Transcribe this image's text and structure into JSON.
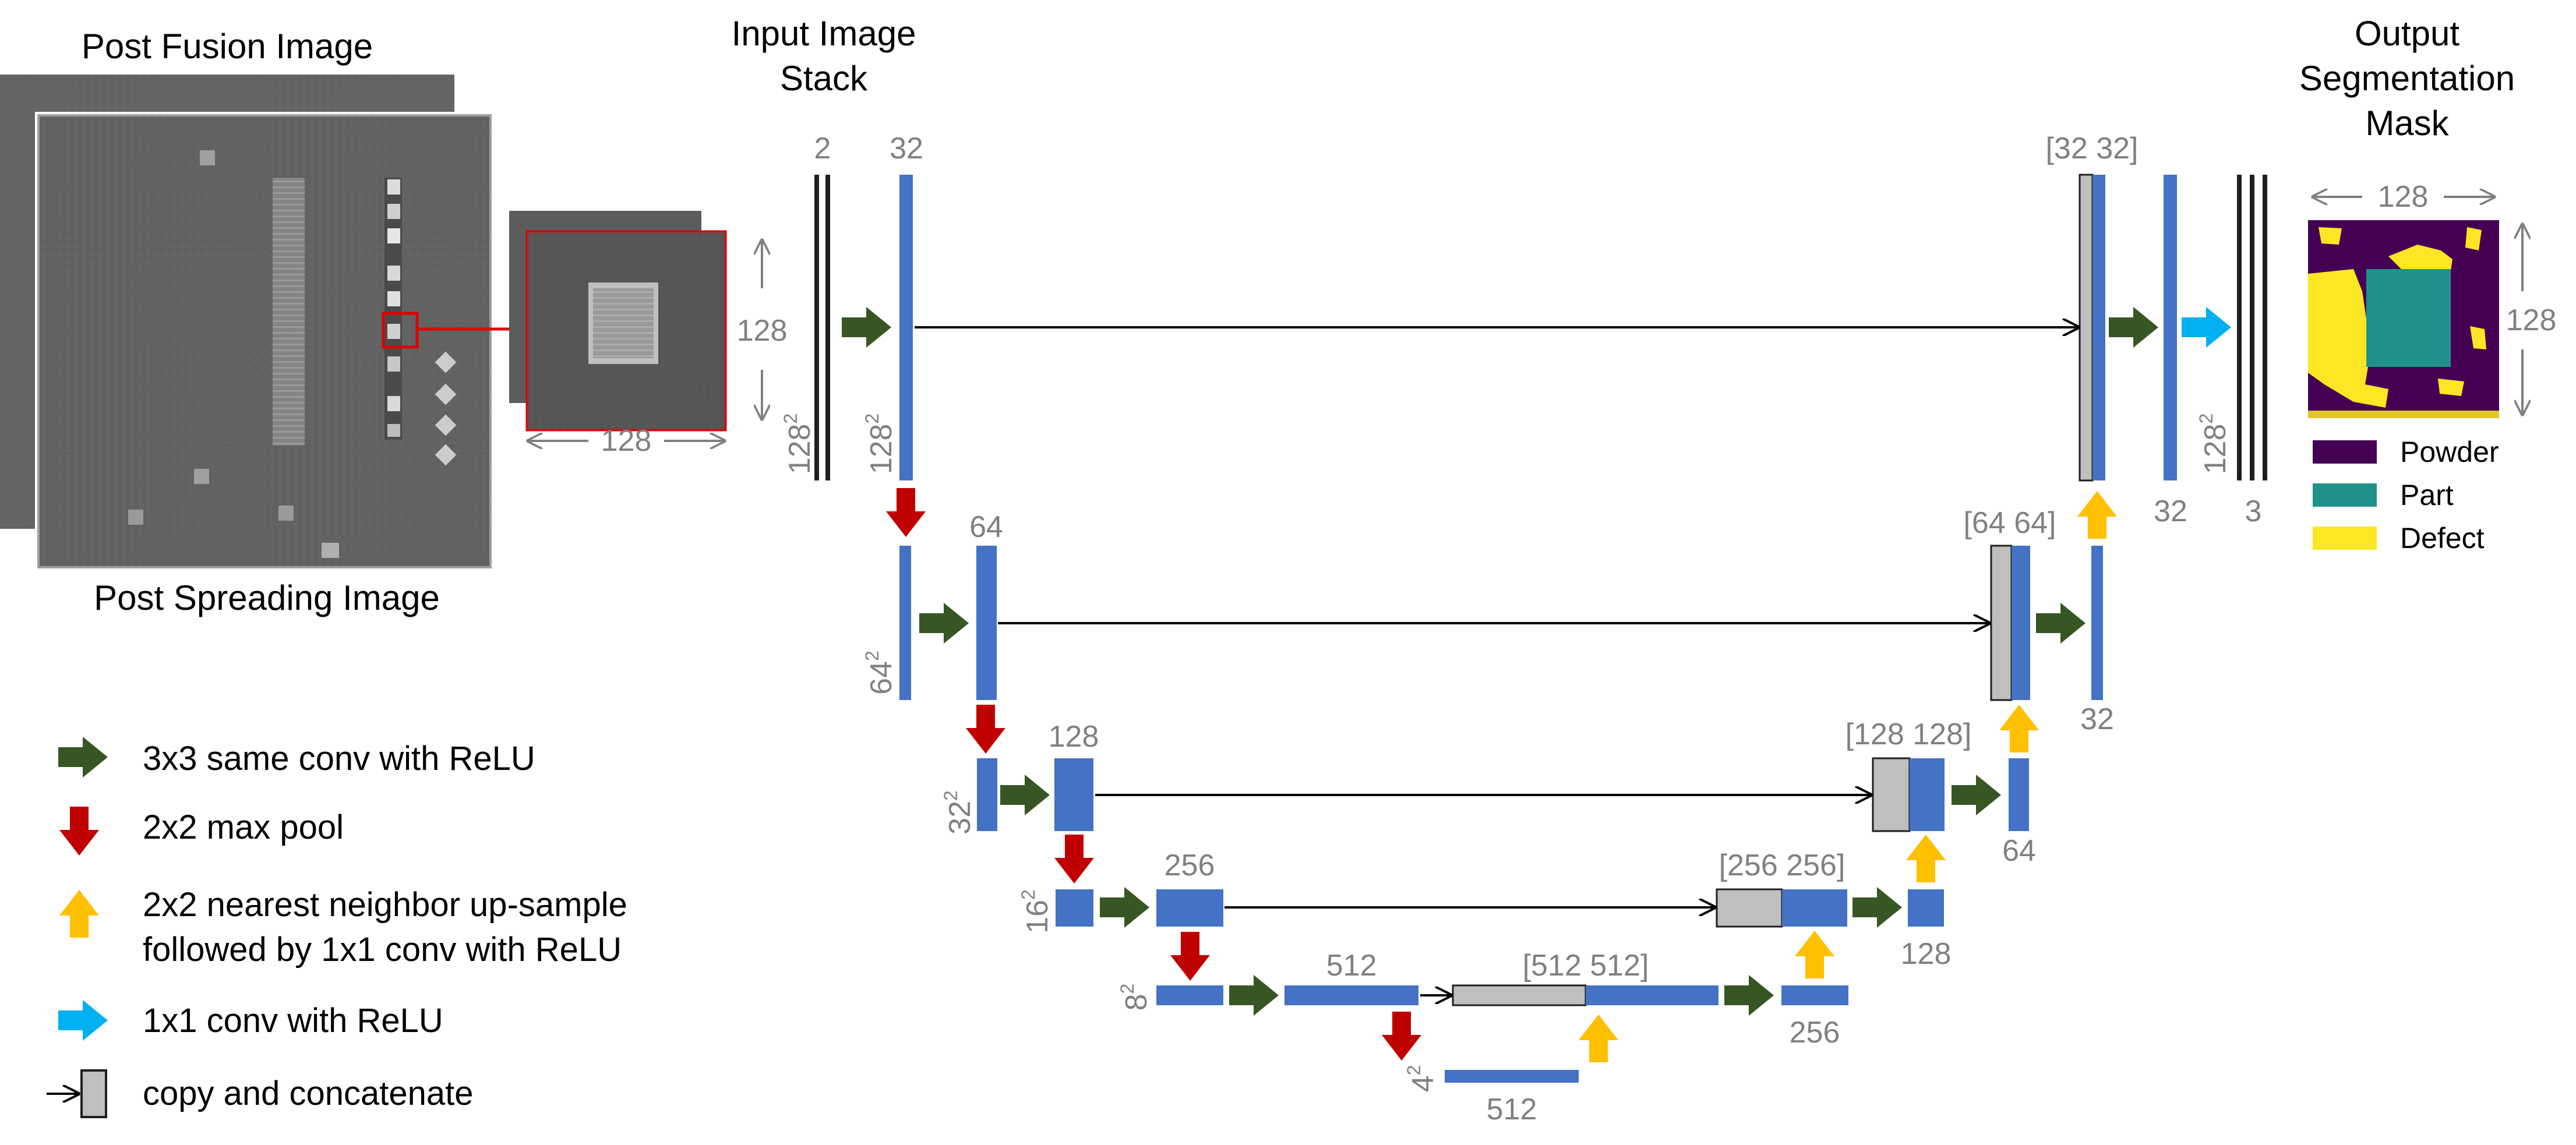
{
  "titles": {
    "post_fusion": "Post Fusion Image",
    "post_spreading": "Post Spreading Image",
    "input_stack_line1": "Input Image",
    "input_stack_line2": "Stack",
    "output_line1": "Output",
    "output_line2": "Segmentation",
    "output_line3": "Mask"
  },
  "crop": {
    "width_label": "128",
    "height_label": "128"
  },
  "network": {
    "input": {
      "channels": "2",
      "size_base": "128",
      "size_exp": "2"
    },
    "enc1": {
      "channels": "32",
      "size_base": "128",
      "size_exp": "2"
    },
    "enc2": {
      "channels": "64",
      "size_base": "64",
      "size_exp": "2"
    },
    "enc3": {
      "channels": "128",
      "size_base": "32",
      "size_exp": "2"
    },
    "enc4": {
      "channels": "256",
      "size_base": "16",
      "size_exp": "2"
    },
    "enc5": {
      "channels": "512",
      "size_base": "8",
      "size_exp": "2"
    },
    "bottleneck": {
      "channels": "512",
      "size_base": "4",
      "size_exp": "2"
    },
    "concat5": "[512 512]",
    "concat4": "[256 256]",
    "concat3": "[128 128]",
    "concat2": "[64 64]",
    "concat1": "[32 32]",
    "up5_out": "256",
    "up4_out": "128",
    "up3_out": "64",
    "up2_out": "32",
    "dec1_out": "32",
    "out_size_base": "128",
    "out_size_exp": "2",
    "out_channels": "3"
  },
  "mask": {
    "width_label": "128",
    "height_label": "128",
    "classes": [
      {
        "label": "Powder",
        "color": "#440154"
      },
      {
        "label": "Part",
        "color": "#21918c"
      },
      {
        "label": "Defect",
        "color": "#fde725"
      }
    ]
  },
  "legend": {
    "conv3": "3x3 same conv with ReLU",
    "maxpool": "2x2 max pool",
    "upsample_line1": "2x2 nearest neighbor up-sample",
    "upsample_line2": "followed by 1x1 conv with ReLU",
    "conv1": "1x1 conv with ReLU",
    "concat": "copy and concatenate"
  },
  "colors": {
    "feature_map": "#4472c4",
    "copy": "#bfbfbf",
    "conv_arrow": "#375623",
    "pool_arrow": "#c00000",
    "up_arrow": "#ffc000",
    "conv1_arrow": "#00b0f0",
    "crop_highlight": "#e00000"
  }
}
